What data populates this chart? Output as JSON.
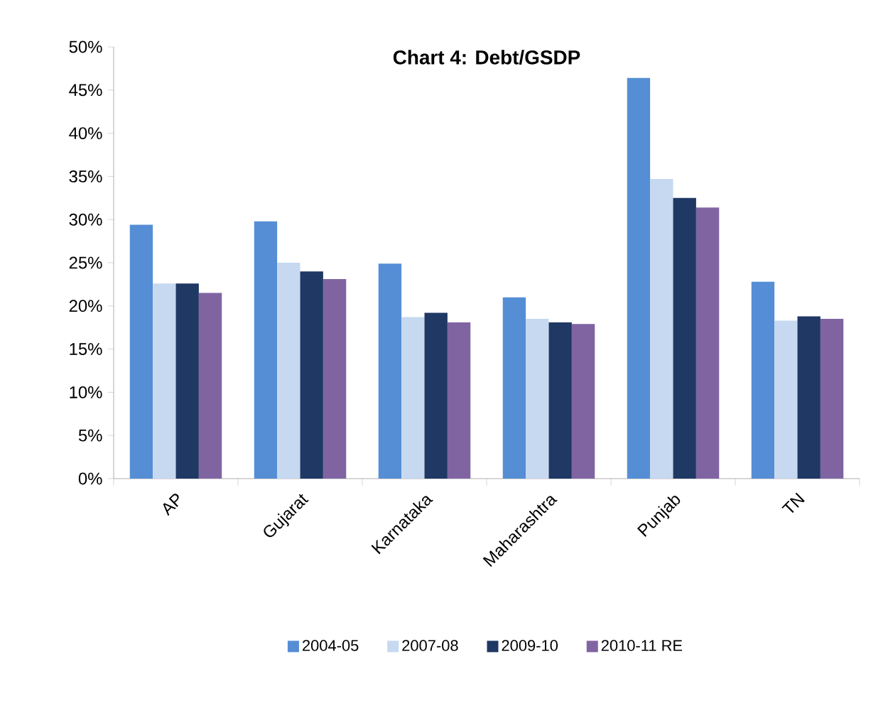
{
  "chart_data": {
    "type": "bar",
    "title": "Chart 4: Debt/GSDP",
    "categories": [
      "AP",
      "Gujarat",
      "Karnataka",
      "Maharashtra",
      "Punjab",
      "TN"
    ],
    "series": [
      {
        "name": "2004-05",
        "color": "#558ed5",
        "values": [
          29.4,
          29.8,
          24.9,
          21.0,
          46.4,
          22.8
        ]
      },
      {
        "name": "2007-08",
        "color": "#c6d9f1",
        "values": [
          22.6,
          25.0,
          18.7,
          18.5,
          34.7,
          18.3
        ]
      },
      {
        "name": "2009-10",
        "color": "#1f3864",
        "values": [
          22.6,
          24.0,
          19.2,
          18.1,
          32.5,
          18.8
        ]
      },
      {
        "name": "2010-11  RE",
        "color": "#8064a2",
        "values": [
          21.5,
          23.1,
          18.1,
          17.9,
          31.4,
          18.5
        ]
      }
    ],
    "ylim": [
      0,
      50
    ],
    "yticks": [
      {
        "value": 0,
        "label": "0%"
      },
      {
        "value": 5,
        "label": "5%"
      },
      {
        "value": 10,
        "label": "10%"
      },
      {
        "value": 15,
        "label": "15%"
      },
      {
        "value": 20,
        "label": "20%"
      },
      {
        "value": 25,
        "label": "25%"
      },
      {
        "value": 30,
        "label": "30%"
      },
      {
        "value": 35,
        "label": "35%"
      },
      {
        "value": 40,
        "label": "40%"
      },
      {
        "value": 45,
        "label": "45%"
      },
      {
        "value": 50,
        "label": "50%"
      }
    ],
    "grid": false,
    "legend": "bottom"
  }
}
